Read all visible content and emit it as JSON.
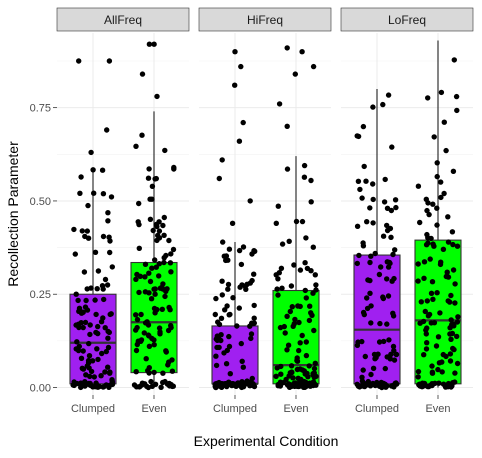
{
  "chart_data": {
    "type": "box-jitter",
    "xlabel": "Experimental Condition",
    "ylabel": "Recollection Parameter",
    "ylim": [
      -0.02,
      0.95
    ],
    "yticks": [
      0.0,
      0.25,
      0.5,
      0.75
    ],
    "ytick_labels": [
      "0.00",
      "0.25",
      "0.50",
      "0.75"
    ],
    "categories": [
      "Clumped",
      "Even"
    ],
    "fill_colors": {
      "Clumped": "#a020f0",
      "Even": "#00ff00"
    },
    "points_per_group": 130,
    "panels": [
      {
        "name": "AllFreq",
        "boxes": [
          {
            "category": "Clumped",
            "q1": 0.01,
            "median": 0.12,
            "q3": 0.25,
            "whisker_low": 0.0,
            "whisker_high": 0.59,
            "outliers": [
              0.63,
              0.69,
              0.875,
              0.875
            ]
          },
          {
            "category": "Even",
            "q1": 0.04,
            "median": 0.175,
            "q3": 0.335,
            "whisker_low": 0.0,
            "whisker_high": 0.74,
            "outliers": [
              0.78,
              0.84,
              0.92,
              0.92
            ]
          }
        ]
      },
      {
        "name": "HiFreq",
        "boxes": [
          {
            "category": "Clumped",
            "q1": 0.01,
            "median": 0.01,
            "q3": 0.165,
            "whisker_low": 0.0,
            "whisker_high": 0.39,
            "outliers": [
              0.44,
              0.5,
              0.56,
              0.61,
              0.66,
              0.71,
              0.81,
              0.86,
              0.9
            ]
          },
          {
            "category": "Even",
            "q1": 0.01,
            "median": 0.06,
            "q3": 0.26,
            "whisker_low": 0.0,
            "whisker_high": 0.62,
            "outliers": [
              0.7,
              0.76,
              0.84,
              0.86,
              0.9,
              0.91
            ]
          }
        ]
      },
      {
        "name": "LoFreq",
        "boxes": [
          {
            "category": "Clumped",
            "q1": 0.01,
            "median": 0.155,
            "q3": 0.355,
            "whisker_low": 0.0,
            "whisker_high": 0.8,
            "outliers": []
          },
          {
            "category": "Even",
            "q1": 0.01,
            "median": 0.18,
            "q3": 0.395,
            "whisker_low": 0.0,
            "whisker_high": 0.93,
            "outliers": []
          }
        ]
      }
    ]
  }
}
